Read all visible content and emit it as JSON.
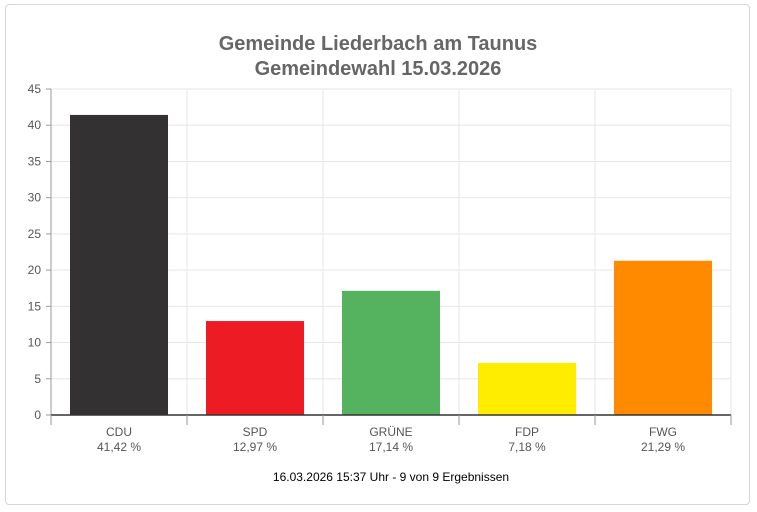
{
  "chart_data": {
    "type": "bar",
    "title": "Gemeinde Liederbach am Taunus",
    "subtitle": "Gemeindewahl 15.03.2026",
    "categories": [
      "CDU",
      "SPD",
      "GRÜNE",
      "FDP",
      "FWG"
    ],
    "value_labels": [
      "41,42 %",
      "12,97 %",
      "17,14 %",
      "7,18 %",
      "21,29 %"
    ],
    "values": [
      41.42,
      12.97,
      17.14,
      7.18,
      21.29
    ],
    "colors": [
      "#333132",
      "#ed1c24",
      "#55b35f",
      "#ffed00",
      "#ff8a00"
    ],
    "xlabel": "",
    "ylabel": "",
    "ylim": [
      0,
      45
    ],
    "yticks": [
      0,
      5,
      10,
      15,
      20,
      25,
      30,
      35,
      40,
      45
    ],
    "grid": true
  },
  "footer": "16.03.2026 15:37 Uhr - 9 von 9 Ergebnissen"
}
